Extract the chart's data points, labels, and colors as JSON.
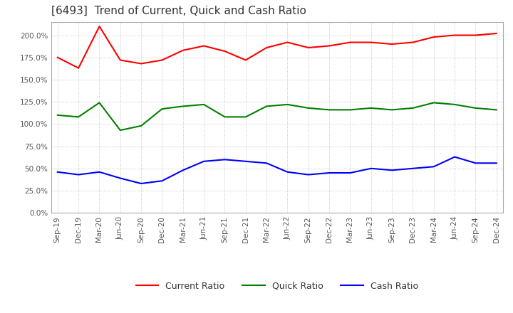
{
  "title": "[6493]  Trend of Current, Quick and Cash Ratio",
  "x_labels": [
    "Sep-19",
    "Dec-19",
    "Mar-20",
    "Jun-20",
    "Sep-20",
    "Dec-20",
    "Mar-21",
    "Jun-21",
    "Sep-21",
    "Dec-21",
    "Mar-22",
    "Jun-22",
    "Sep-22",
    "Dec-22",
    "Mar-23",
    "Jun-23",
    "Sep-23",
    "Dec-23",
    "Mar-24",
    "Jun-24",
    "Sep-24",
    "Dec-24"
  ],
  "current_ratio": [
    175,
    163,
    210,
    172,
    168,
    172,
    183,
    188,
    182,
    172,
    186,
    192,
    186,
    188,
    192,
    192,
    190,
    192,
    198,
    200,
    200,
    202
  ],
  "quick_ratio": [
    110,
    108,
    124,
    93,
    98,
    117,
    120,
    122,
    108,
    108,
    120,
    122,
    118,
    116,
    116,
    118,
    116,
    118,
    124,
    122,
    118,
    116
  ],
  "cash_ratio": [
    46,
    43,
    46,
    39,
    33,
    36,
    48,
    58,
    60,
    58,
    56,
    46,
    43,
    45,
    45,
    50,
    48,
    50,
    52,
    63,
    56,
    56
  ],
  "current_color": "#FF0000",
  "quick_color": "#008000",
  "cash_color": "#0000FF",
  "ylim_min": 0,
  "ylim_max": 215,
  "yticks": [
    0,
    25,
    50,
    75,
    100,
    125,
    150,
    175,
    200
  ],
  "background_color": "#ffffff",
  "title_fontsize": 11,
  "grid_color": "#aaaaaa",
  "spine_color": "#aaaaaa"
}
